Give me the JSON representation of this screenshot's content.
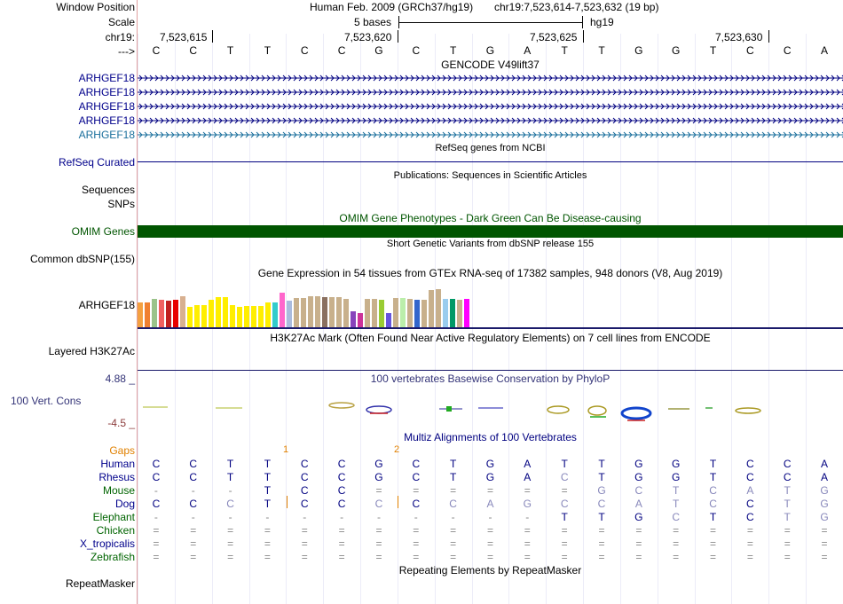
{
  "labels": {
    "window_position": "Window Position",
    "scale": "Scale",
    "chr": "chr19:",
    "arrow": "--->",
    "gencode_genes": [
      "ARHGEF18",
      "ARHGEF18",
      "ARHGEF18",
      "ARHGEF18",
      "ARHGEF18"
    ],
    "refseq": "RefSeq Curated",
    "sequences": "Sequences",
    "snps": "SNPs",
    "omim": "OMIM Genes",
    "dbsnp": "Common dbSNP(155)",
    "gtex_gene": "ARHGEF18",
    "h3k27ac": "Layered H3K27Ac",
    "phylop_max": "4.88 _",
    "phylop_name": "100 Vert. Cons",
    "phylop_min": "-4.5 _",
    "gaps": "Gaps",
    "species": [
      "Human",
      "Rhesus",
      "Mouse",
      "Dog",
      "Elephant",
      "Chicken",
      "X_tropicalis",
      "Zebrafish"
    ],
    "repeatmasker": "RepeatMasker"
  },
  "header": {
    "assembly": "Human Feb. 2009 (GRCh37/hg19)",
    "position": "chr19:7,523,614-7,523,632 (19 bp)",
    "scale_text": "5 bases",
    "scale_db": "hg19",
    "ticks": [
      "7,523,615",
      "7,523,620",
      "7,523,625",
      "7,523,630"
    ]
  },
  "sequence": [
    "C",
    "C",
    "T",
    "T",
    "C",
    "C",
    "G",
    "C",
    "T",
    "G",
    "A",
    "T",
    "T",
    "G",
    "G",
    "T",
    "C",
    "C",
    "A"
  ],
  "tracks": {
    "gencode_title": "GENCODE V49lift37",
    "refseq_title": "RefSeq genes from NCBI",
    "pubs_title": "Publications: Sequences in Scientific Articles",
    "omim_title": "OMIM Gene Phenotypes - Dark Green Can Be Disease-causing",
    "dbsnp_title": "Short Genetic Variants from dbSNP release 155",
    "gtex_title": "Gene Expression in 54 tissues from GTEx RNA-seq of 17382 samples, 948 donors (V8, Aug 2019)",
    "h3k27ac_title": "H3K27Ac Mark (Often Found Near Active Regulatory Elements) on 7 cell lines from ENCODE",
    "phylop_title": "100 vertebrates Basewise Conservation by PhyloP",
    "multiz_title": "Multiz Alignments of 100 Vertebrates",
    "repeat_title": "Repeating Elements by RepeatMasker",
    "gap_marks": [
      "1",
      "2"
    ]
  },
  "colors": {
    "omim_bar": "#005500",
    "gene_blue": "#000080",
    "gene_teal": "#1a6f9c",
    "gap_orange": "#e08000"
  },
  "gtex_bars": [
    {
      "v": 0.52,
      "c": "#f4a040"
    },
    {
      "v": 0.52,
      "c": "#f08030"
    },
    {
      "v": 0.6,
      "c": "#9ac38a"
    },
    {
      "v": 0.58,
      "c": "#f06060"
    },
    {
      "v": 0.56,
      "c": "#c02020"
    },
    {
      "v": 0.58,
      "c": "#e80000"
    },
    {
      "v": 0.66,
      "c": "#d8b090"
    },
    {
      "v": 0.44,
      "c": "#ffee00"
    },
    {
      "v": 0.48,
      "c": "#ffee00"
    },
    {
      "v": 0.48,
      "c": "#ffee00"
    },
    {
      "v": 0.58,
      "c": "#ffee00"
    },
    {
      "v": 0.64,
      "c": "#ffee00"
    },
    {
      "v": 0.64,
      "c": "#ffee00"
    },
    {
      "v": 0.48,
      "c": "#ffee00"
    },
    {
      "v": 0.44,
      "c": "#ffee00"
    },
    {
      "v": 0.46,
      "c": "#ffee00"
    },
    {
      "v": 0.46,
      "c": "#ffee00"
    },
    {
      "v": 0.46,
      "c": "#ffee00"
    },
    {
      "v": 0.52,
      "c": "#ffee00"
    },
    {
      "v": 0.52,
      "c": "#33cccc"
    },
    {
      "v": 0.74,
      "c": "#ff66cc"
    },
    {
      "v": 0.56,
      "c": "#aabbdd"
    },
    {
      "v": 0.62,
      "c": "#c8b08c"
    },
    {
      "v": 0.62,
      "c": "#c8b08c"
    },
    {
      "v": 0.66,
      "c": "#c8b08c"
    },
    {
      "v": 0.66,
      "c": "#c8b08c"
    },
    {
      "v": 0.64,
      "c": "#8a7060"
    },
    {
      "v": 0.64,
      "c": "#c8b08c"
    },
    {
      "v": 0.64,
      "c": "#c8b08c"
    },
    {
      "v": 0.6,
      "c": "#c8b08c"
    },
    {
      "v": 0.34,
      "c": "#8844bb"
    },
    {
      "v": 0.3,
      "c": "#cc3399"
    },
    {
      "v": 0.6,
      "c": "#c8b08c"
    },
    {
      "v": 0.6,
      "c": "#c8b08c"
    },
    {
      "v": 0.58,
      "c": "#99cc33"
    },
    {
      "v": 0.3,
      "c": "#6655dd"
    },
    {
      "v": 0.62,
      "c": "#c8b08c"
    },
    {
      "v": 0.62,
      "c": "#bbeeaa"
    },
    {
      "v": 0.6,
      "c": "#c8b08c"
    },
    {
      "v": 0.58,
      "c": "#3366cc"
    },
    {
      "v": 0.58,
      "c": "#c8b08c"
    },
    {
      "v": 0.8,
      "c": "#c8b08c"
    },
    {
      "v": 0.82,
      "c": "#c8b08c"
    },
    {
      "v": 0.6,
      "c": "#99ccee"
    },
    {
      "v": 0.6,
      "c": "#009966"
    },
    {
      "v": 0.58,
      "c": "#c8b08c"
    },
    {
      "v": 0.6,
      "c": "#ff00ff"
    }
  ],
  "alignment": {
    "Human": {
      "color": "#000080",
      "bases": [
        "C",
        "C",
        "T",
        "T",
        "C",
        "C",
        "G",
        "C",
        "T",
        "G",
        "A",
        "T",
        "T",
        "G",
        "G",
        "T",
        "C",
        "C",
        "A"
      ]
    },
    "Rhesus": {
      "color": "#000080",
      "bases": [
        "C",
        "C",
        "T",
        "T",
        "C",
        "C",
        "G",
        "C",
        "T",
        "G",
        "A",
        "C",
        "T",
        "G",
        "G",
        "T",
        "C",
        "C",
        "A"
      ]
    },
    "Mouse": {
      "color": "#999999",
      "bases": [
        "-",
        "-",
        "-",
        "T",
        "C",
        "C",
        "=",
        "=",
        "=",
        "=",
        "=",
        "=",
        "G",
        "C",
        "T",
        "C",
        "A",
        "T",
        "G"
      ]
    },
    "Dog": {
      "color": "#000080",
      "bases": [
        "C",
        "C",
        "C",
        "T",
        "C",
        "C",
        "C",
        "C",
        "C",
        "A",
        "G",
        "C",
        "C",
        "A",
        "T",
        "C",
        "C",
        "T",
        "G"
      ]
    },
    "Elephant": {
      "color": "#999999",
      "bases": [
        "-",
        "-",
        "-",
        "-",
        "-",
        "-",
        "-",
        "-",
        "-",
        "-",
        "-",
        "T",
        "T",
        "G",
        "C",
        "T",
        "C",
        "T",
        "G"
      ]
    },
    "Chicken": {
      "color": "#999999",
      "bases": [
        "=",
        "=",
        "=",
        "=",
        "=",
        "=",
        "=",
        "=",
        "=",
        "=",
        "=",
        "=",
        "=",
        "=",
        "=",
        "=",
        "=",
        "=",
        "="
      ]
    },
    "X_tropicalis": {
      "color": "#999999",
      "bases": [
        "=",
        "=",
        "=",
        "=",
        "=",
        "=",
        "=",
        "=",
        "=",
        "=",
        "=",
        "=",
        "=",
        "=",
        "=",
        "=",
        "=",
        "=",
        "="
      ]
    },
    "Zebrafish": {
      "color": "#999999",
      "bases": [
        "=",
        "=",
        "=",
        "=",
        "=",
        "=",
        "=",
        "=",
        "=",
        "=",
        "=",
        "=",
        "=",
        "=",
        "=",
        "=",
        "=",
        "=",
        "="
      ]
    }
  }
}
